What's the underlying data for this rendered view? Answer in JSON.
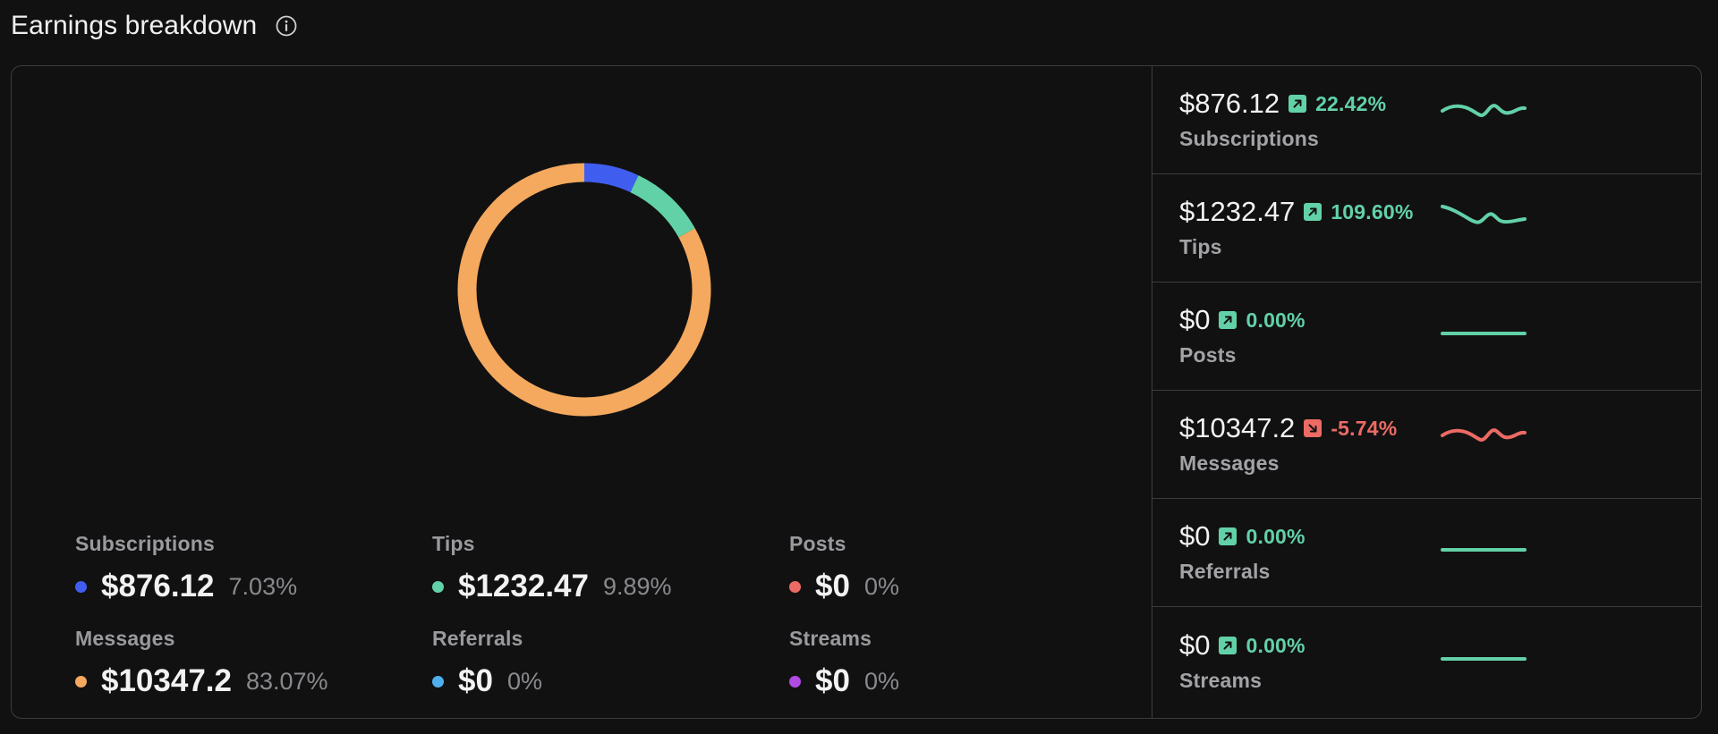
{
  "header": {
    "title": "Earnings breakdown",
    "info_icon": "info-circle-icon"
  },
  "colors": {
    "subscriptions": "#3f5ef0",
    "tips": "#62d1a8",
    "posts": "#ec6b64",
    "messages": "#f4a95e",
    "referrals": "#4fb0f0",
    "streams": "#b24ae6",
    "positive": "#62d1a8",
    "negative": "#ec6b64"
  },
  "chart_data": {
    "type": "pie",
    "labels": [
      "Subscriptions",
      "Tips",
      "Posts",
      "Messages",
      "Referrals",
      "Streams"
    ],
    "values": [
      7.03,
      9.89,
      0,
      83.07,
      0,
      0
    ],
    "colors": [
      "#3f5ef0",
      "#62d1a8",
      "#ec6b64",
      "#f4a95e",
      "#4fb0f0",
      "#b24ae6"
    ]
  },
  "legend": [
    {
      "label": "Subscriptions",
      "value": "$876.12",
      "pct": "7.03%",
      "color": "#3f5ef0"
    },
    {
      "label": "Tips",
      "value": "$1232.47",
      "pct": "9.89%",
      "color": "#62d1a8"
    },
    {
      "label": "Posts",
      "value": "$0",
      "pct": "0%",
      "color": "#ec6b64"
    },
    {
      "label": "Messages",
      "value": "$10347.2",
      "pct": "83.07%",
      "color": "#f4a95e"
    },
    {
      "label": "Referrals",
      "value": "$0",
      "pct": "0%",
      "color": "#4fb0f0"
    },
    {
      "label": "Streams",
      "value": "$0",
      "pct": "0%",
      "color": "#b24ae6"
    }
  ],
  "stats": [
    {
      "value": "$876.12",
      "change": "22.42%",
      "trend": "up",
      "label": "Subscriptions",
      "spark": "wavy"
    },
    {
      "value": "$1232.47",
      "change": "109.60%",
      "trend": "up",
      "label": "Tips",
      "spark": "wavy-drop"
    },
    {
      "value": "$0",
      "change": "0.00%",
      "trend": "up",
      "label": "Posts",
      "spark": "flat"
    },
    {
      "value": "$10347.2",
      "change": "-5.74%",
      "trend": "down",
      "label": "Messages",
      "spark": "wavy"
    },
    {
      "value": "$0",
      "change": "0.00%",
      "trend": "up",
      "label": "Referrals",
      "spark": "flat"
    },
    {
      "value": "$0",
      "change": "0.00%",
      "trend": "up",
      "label": "Streams",
      "spark": "flat"
    }
  ]
}
